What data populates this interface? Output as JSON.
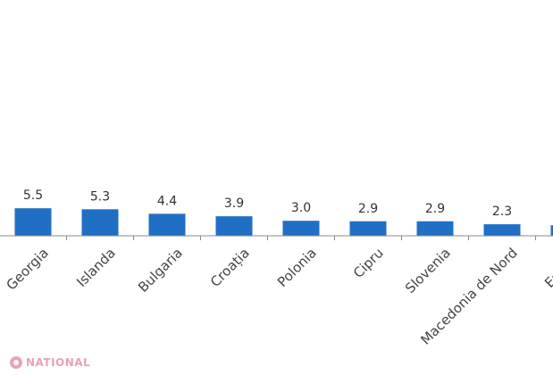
{
  "chart_data": {
    "type": "bar",
    "categories": [
      "Georgia",
      "Islanda",
      "Bulgaria",
      "Croația",
      "Polonia",
      "Cipru",
      "Slovenia",
      "Macedonia de Nord",
      "Estonia"
    ],
    "values": [
      5.5,
      5.3,
      4.4,
      3.9,
      3.0,
      2.9,
      2.9,
      2.3,
      2.1
    ],
    "value_labels": [
      "5.5",
      "5.3",
      "4.4",
      "3.9",
      "3.0",
      "2.9",
      "2.9",
      "2.3",
      ""
    ],
    "title": "",
    "xlabel": "",
    "ylabel": "",
    "bar_color": "#1f6fc5",
    "axis_color": "#888888",
    "grid": false,
    "legend": "none"
  },
  "watermark": {
    "text": "NATIONAL",
    "color": "#e8a3b3"
  }
}
